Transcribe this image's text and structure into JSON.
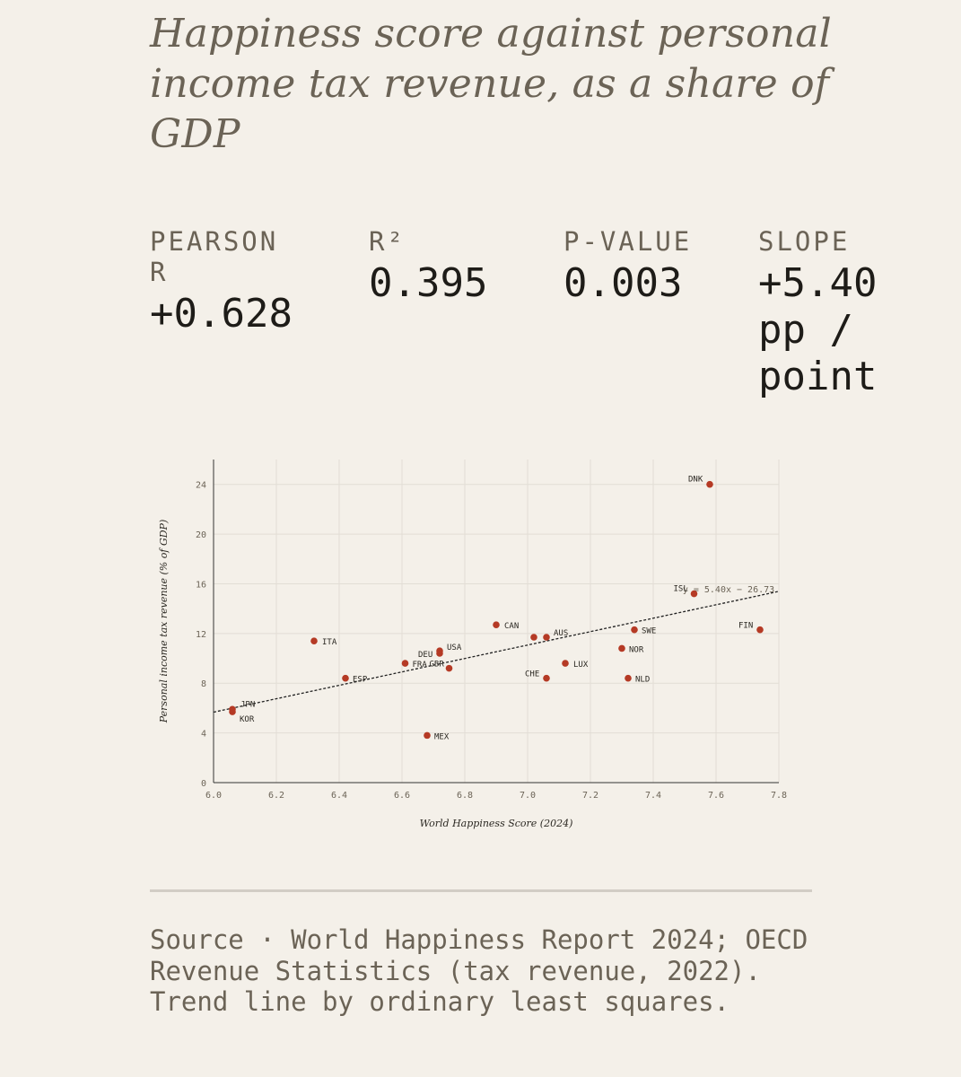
{
  "title": "Happiness score against personal income tax revenue, as a share of GDP",
  "stats": {
    "pearson_label": "PEARSON R",
    "pearson_value": "+0.628",
    "r2_label": "R²",
    "r2_value": "0.395",
    "p_label": "P-VALUE",
    "p_value": "0.003",
    "slope_label": "SLOPE",
    "slope_value": "+5.40 pp / point"
  },
  "chart_data": {
    "type": "scatter",
    "xlabel": "World Happiness Score (2024)",
    "ylabel": "Personal income tax revenue (% of GDP)",
    "xlim": [
      6.0,
      7.8
    ],
    "ylim": [
      0,
      26
    ],
    "x_ticks": [
      6.0,
      6.2,
      6.4,
      6.6,
      6.8,
      7.0,
      7.2,
      7.4,
      7.6,
      7.8
    ],
    "y_ticks": [
      0,
      4,
      8,
      12,
      16,
      20,
      24
    ],
    "grid": true,
    "points": [
      {
        "label": "DNK",
        "x": 7.58,
        "y": 24.0
      },
      {
        "label": "ISL",
        "x": 7.53,
        "y": 15.2
      },
      {
        "label": "FIN",
        "x": 7.74,
        "y": 12.3
      },
      {
        "label": "SWE",
        "x": 7.34,
        "y": 12.3
      },
      {
        "label": "NOR",
        "x": 7.3,
        "y": 10.8
      },
      {
        "label": "NLD",
        "x": 7.32,
        "y": 8.4
      },
      {
        "label": "LUX",
        "x": 7.12,
        "y": 9.6
      },
      {
        "label": "CHE",
        "x": 7.06,
        "y": 8.4
      },
      {
        "label": "AUS",
        "x": 7.06,
        "y": 11.7
      },
      {
        "label": "",
        "x": 7.02,
        "y": 11.7
      },
      {
        "label": "CAN",
        "x": 6.9,
        "y": 12.7
      },
      {
        "label": "USA",
        "x": 6.72,
        "y": 10.6
      },
      {
        "label": "DEU",
        "x": 6.72,
        "y": 10.4
      },
      {
        "label": "GBR",
        "x": 6.75,
        "y": 9.2
      },
      {
        "label": "FRA",
        "x": 6.61,
        "y": 9.6
      },
      {
        "label": "ITA",
        "x": 6.32,
        "y": 11.4
      },
      {
        "label": "ESP",
        "x": 6.42,
        "y": 8.4
      },
      {
        "label": "MEX",
        "x": 6.68,
        "y": 3.8
      },
      {
        "label": "JPN",
        "x": 6.06,
        "y": 5.9
      },
      {
        "label": "KOR",
        "x": 6.06,
        "y": 5.7
      }
    ],
    "trend": {
      "label": "y = 5.40x − 26.73",
      "slope": 5.4,
      "intercept": -26.73
    }
  },
  "colors": {
    "point": "#b53a25",
    "background": "#f4f0e9",
    "muted_text": "#6b6356",
    "value_text": "#1e1c18"
  },
  "source": "Source · World Happiness Report 2024; OECD Revenue Statistics (tax revenue, 2022). Trend line by ordinary least squares."
}
